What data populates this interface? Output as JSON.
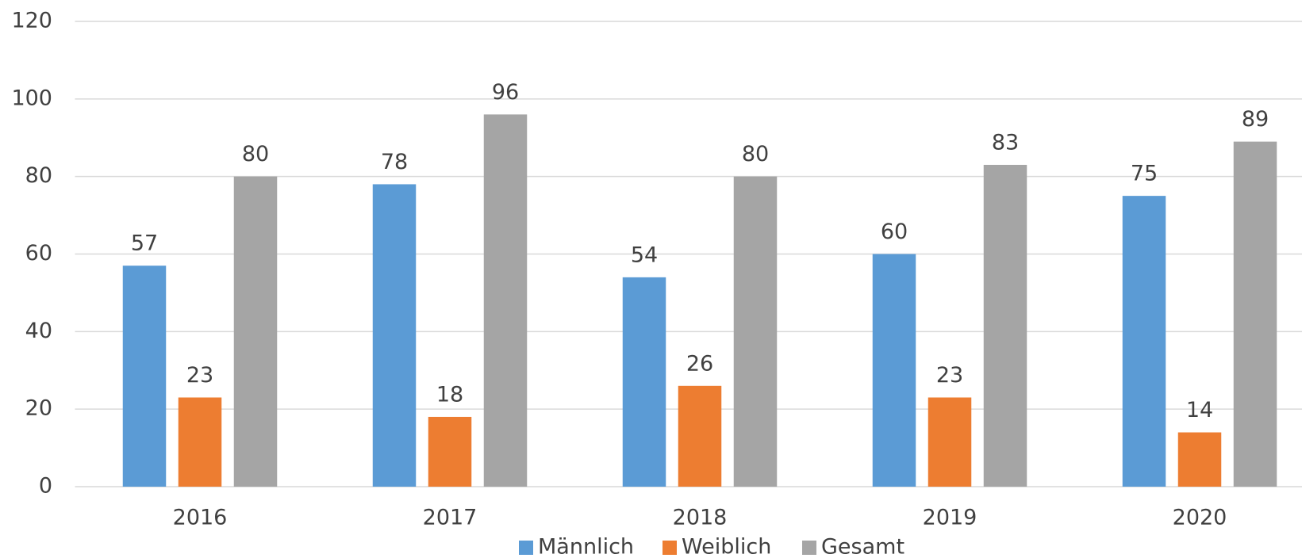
{
  "chart_data": {
    "type": "bar",
    "categories": [
      "2016",
      "2017",
      "2018",
      "2019",
      "2020"
    ],
    "series": [
      {
        "name": "Männlich",
        "color": "#5b9bd5",
        "values": [
          57,
          78,
          54,
          60,
          75
        ]
      },
      {
        "name": "Weiblich",
        "color": "#ed7d31",
        "values": [
          23,
          18,
          26,
          23,
          14
        ]
      },
      {
        "name": "Gesamt",
        "color": "#a5a5a5",
        "values": [
          80,
          96,
          80,
          83,
          89
        ]
      }
    ],
    "ylim": [
      0,
      120
    ],
    "yticks": [
      0,
      20,
      40,
      60,
      80,
      100,
      120
    ],
    "grid": true,
    "legend": "bottom"
  }
}
